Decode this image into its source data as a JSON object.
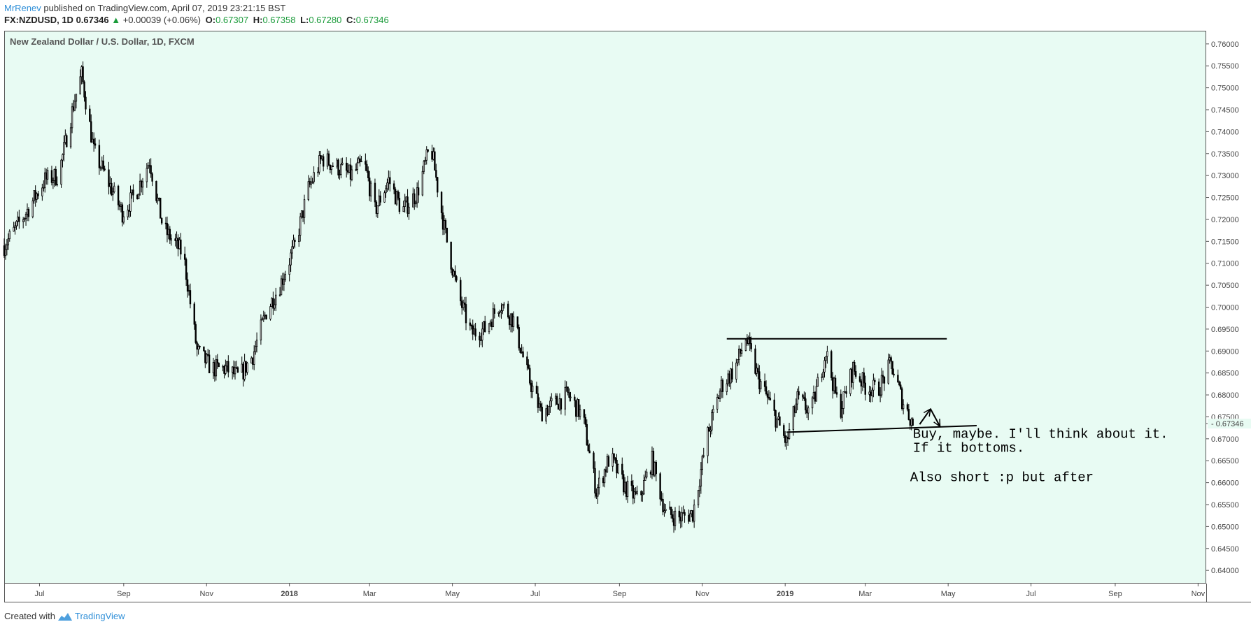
{
  "header": {
    "author": "MrRenev",
    "published_text": "published on TradingView.com, April 07, 2019 23:21:15 BST",
    "symbol_line": "FX:NZDUSD, 1D",
    "last": "0.67346",
    "change": "+0.00039 (+0.06%)",
    "o_label": "O:",
    "o_value": "0.67307",
    "h_label": "H:",
    "h_value": "0.67358",
    "l_label": "L:",
    "l_value": "0.67280",
    "c_label": "C:",
    "c_value": "0.67346"
  },
  "footer": {
    "created_with": "Created with",
    "brand": "TradingView"
  },
  "colors": {
    "background": "#e8fbf3",
    "candle": "#000000",
    "accent": "#2f8fd8",
    "up": "#1a9b3a",
    "price_label_bg": "#e8fbf3"
  },
  "chart_data": {
    "type": "candlestick",
    "title": "New Zealand Dollar / U.S. Dollar, 1D, FXCM",
    "x_tick_labels": [
      "Jul",
      "Sep",
      "Nov",
      "2018",
      "Mar",
      "May",
      "Jul",
      "Sep",
      "Nov",
      "2019",
      "Mar",
      "May",
      "Jul",
      "Sep",
      "Nov"
    ],
    "x_tick_dates": [
      "2017-07-01",
      "2017-09-01",
      "2017-11-01",
      "2018-01-01",
      "2018-03-01",
      "2018-05-01",
      "2018-07-01",
      "2018-09-01",
      "2018-11-01",
      "2019-01-01",
      "2019-03-01",
      "2019-05-01",
      "2019-07-01",
      "2019-09-01",
      "2019-11-01"
    ],
    "x_range": [
      "2017-06-05",
      "2019-11-07"
    ],
    "ylim": [
      0.637,
      0.763
    ],
    "y_ticks": [
      "0.76000",
      "0.75500",
      "0.75000",
      "0.74500",
      "0.74000",
      "0.73500",
      "0.73000",
      "0.72500",
      "0.72000",
      "0.71500",
      "0.71000",
      "0.70500",
      "0.70000",
      "0.69500",
      "0.69000",
      "0.68500",
      "0.68000",
      "0.67500",
      "0.67000",
      "0.66500",
      "0.66000",
      "0.65500",
      "0.65000",
      "0.64500",
      "0.64000"
    ],
    "last_price_label": "0.67346",
    "price_path": [
      [
        "2017-06-05",
        0.714
      ],
      [
        "2017-06-20",
        0.721
      ],
      [
        "2017-07-05",
        0.729
      ],
      [
        "2017-07-15",
        0.73
      ],
      [
        "2017-07-27",
        0.7475
      ],
      [
        "2017-08-01",
        0.753
      ],
      [
        "2017-08-10",
        0.7355
      ],
      [
        "2017-08-20",
        0.729
      ],
      [
        "2017-08-31",
        0.7215
      ],
      [
        "2017-09-10",
        0.726
      ],
      [
        "2017-09-20",
        0.7335
      ],
      [
        "2017-09-30",
        0.718
      ],
      [
        "2017-10-15",
        0.712
      ],
      [
        "2017-10-25",
        0.69
      ],
      [
        "2017-11-05",
        0.686
      ],
      [
        "2017-11-15",
        0.686
      ],
      [
        "2017-11-25",
        0.684
      ],
      [
        "2017-12-05",
        0.689
      ],
      [
        "2017-12-15",
        0.699
      ],
      [
        "2017-12-25",
        0.705
      ],
      [
        "2018-01-05",
        0.714
      ],
      [
        "2018-01-15",
        0.727
      ],
      [
        "2018-01-25",
        0.734
      ],
      [
        "2018-02-05",
        0.732
      ],
      [
        "2018-02-15",
        0.73
      ],
      [
        "2018-02-25",
        0.733
      ],
      [
        "2018-03-05",
        0.722
      ],
      [
        "2018-03-15",
        0.729
      ],
      [
        "2018-03-25",
        0.722
      ],
      [
        "2018-04-05",
        0.726
      ],
      [
        "2018-04-15",
        0.737
      ],
      [
        "2018-04-25",
        0.718
      ],
      [
        "2018-05-05",
        0.703
      ],
      [
        "2018-05-15",
        0.694
      ],
      [
        "2018-05-25",
        0.695
      ],
      [
        "2018-06-05",
        0.701
      ],
      [
        "2018-06-15",
        0.697
      ],
      [
        "2018-06-25",
        0.685
      ],
      [
        "2018-07-05",
        0.676
      ],
      [
        "2018-07-15",
        0.678
      ],
      [
        "2018-07-25",
        0.68
      ],
      [
        "2018-08-05",
        0.675
      ],
      [
        "2018-08-15",
        0.658
      ],
      [
        "2018-08-25",
        0.666
      ],
      [
        "2018-09-05",
        0.659
      ],
      [
        "2018-09-15",
        0.656
      ],
      [
        "2018-09-25",
        0.665
      ],
      [
        "2018-10-05",
        0.653
      ],
      [
        "2018-10-15",
        0.652
      ],
      [
        "2018-10-25",
        0.653
      ],
      [
        "2018-11-05",
        0.671
      ],
      [
        "2018-11-15",
        0.682
      ],
      [
        "2018-11-25",
        0.686
      ],
      [
        "2018-12-03",
        0.693
      ],
      [
        "2018-12-12",
        0.684
      ],
      [
        "2018-12-22",
        0.677
      ],
      [
        "2019-01-02",
        0.669
      ],
      [
        "2019-01-10",
        0.679
      ],
      [
        "2019-01-20",
        0.676
      ],
      [
        "2019-01-31",
        0.69
      ],
      [
        "2019-02-10",
        0.676
      ],
      [
        "2019-02-20",
        0.686
      ],
      [
        "2019-03-01",
        0.682
      ],
      [
        "2019-03-10",
        0.681
      ],
      [
        "2019-03-20",
        0.687
      ],
      [
        "2019-03-28",
        0.679
      ],
      [
        "2019-04-05",
        0.6734
      ]
    ],
    "annotations": {
      "resistance_line": [
        [
          "2018-11-19",
          0.6928
        ],
        [
          "2019-04-30",
          0.6928
        ]
      ],
      "support_line": [
        [
          "2019-01-02",
          0.6715
        ],
        [
          "2019-05-22",
          0.673
        ]
      ],
      "arrow_up": [
        [
          "2019-04-10",
          0.6733
        ],
        [
          "2019-04-18",
          0.6768
        ]
      ],
      "arrow_down": [
        [
          "2019-04-18",
          0.6768
        ],
        [
          "2019-04-25",
          0.6728
        ]
      ],
      "text_lines": [
        {
          "id": "note1",
          "text": "Buy, maybe. I'll think about it.",
          "at": [
            "2019-04-05",
            0.6702
          ]
        },
        {
          "id": "note2",
          "text": "If it bottoms.",
          "at": [
            "2019-04-05",
            0.667
          ]
        },
        {
          "id": "note3",
          "text": "Also short :p but after",
          "at": [
            "2019-04-03",
            0.6603
          ]
        }
      ]
    }
  }
}
